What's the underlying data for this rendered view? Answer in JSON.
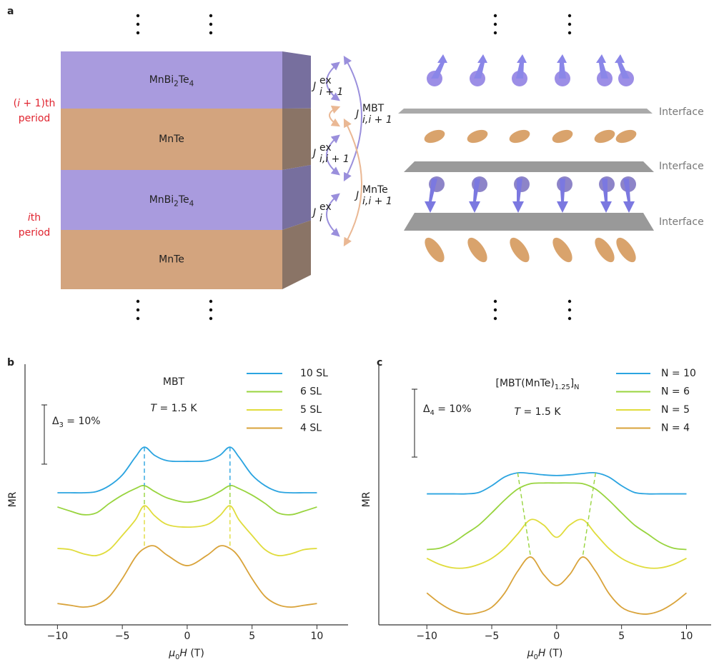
{
  "panel_a": {
    "label": "a",
    "periods": [
      {
        "lines": [
          [
            {
              "text": "("
            },
            {
              "italic": "i"
            },
            {
              "text": " + 1)th"
            }
          ],
          [
            {
              "text": "period"
            }
          ]
        ]
      },
      {
        "lines": [
          [
            {
              "italic": "i"
            },
            {
              "text": "th"
            }
          ],
          [
            {
              "text": "period"
            }
          ]
        ]
      }
    ],
    "layers": [
      [
        {
          "text": "MnBi"
        },
        {
          "sub": "2"
        },
        {
          "text": "Te"
        },
        {
          "sub": "4"
        }
      ],
      [
        {
          "text": "MnTe"
        }
      ],
      [
        {
          "text": "MnBi"
        },
        {
          "sub": "2"
        },
        {
          "text": "Te"
        },
        {
          "sub": "4"
        }
      ],
      [
        {
          "text": "MnTe"
        }
      ]
    ],
    "couplings": [
      {
        "symbol": "J",
        "sup": "ex",
        "sub": "i + 1"
      },
      {
        "symbol": "J",
        "sup": "ex",
        "sub": "i,i + 1"
      },
      {
        "symbol": "J",
        "sup": "ex",
        "sub": "i"
      },
      {
        "symbol": "J",
        "sup": "MBT",
        "sub": "i,i + 1"
      },
      {
        "symbol": "J",
        "sup": "MnTe",
        "sub": "i,i + 1"
      }
    ],
    "interfaces": [
      "Interface",
      "Interface",
      "Interface"
    ]
  },
  "chart_data": [
    {
      "type": "line",
      "panel": "b",
      "title": [
        {
          "text": "MBT"
        }
      ],
      "subtitle": [
        {
          "italic": "T"
        },
        {
          "text": " = 1.5 K"
        }
      ],
      "xlabel": [
        {
          "italic": "μ"
        },
        {
          "sub": "0"
        },
        {
          "italic": "H"
        },
        {
          "text": " (T)"
        }
      ],
      "ylabel": "MR",
      "scale_bar": {
        "label": [
          {
            "text": "Δ"
          },
          {
            "sub": "3"
          },
          {
            "text": " = 10%"
          }
        ],
        "length": 10
      },
      "legend": "upper right",
      "xlim": [
        -12.5,
        12.4
      ],
      "ylim": [
        0,
        44
      ],
      "xticks": [
        {
          "value": -10,
          "label": "−10"
        },
        {
          "value": -5,
          "label": "−5"
        },
        0,
        5,
        10
      ],
      "x": [
        -10,
        -9,
        -8,
        -7,
        -6,
        -5,
        -4,
        -3.3,
        -2.5,
        -1.5,
        0,
        1.5,
        2.5,
        3.3,
        4,
        5,
        6,
        7,
        8,
        9,
        10
      ],
      "series": [
        {
          "name": "4 SL",
          "color": "#d9a33a",
          "values": [
            3.6,
            3.3,
            3.0,
            3.4,
            4.8,
            7.8,
            11.4,
            12.9,
            13.3,
            11.7,
            10.0,
            11.7,
            13.3,
            12.9,
            11.4,
            7.8,
            4.8,
            3.4,
            3.0,
            3.3,
            3.6
          ]
        },
        {
          "name": "5 SL",
          "color": "#e0dc3c",
          "values": [
            12.9,
            12.7,
            12.0,
            11.7,
            12.7,
            15.1,
            17.7,
            20.1,
            18.4,
            16.9,
            16.5,
            16.9,
            18.4,
            20.1,
            17.7,
            15.1,
            12.7,
            11.7,
            12.0,
            12.7,
            12.9
          ]
        },
        {
          "name": "6 SL",
          "color": "#98d43e",
          "values": [
            19.9,
            19.2,
            18.6,
            18.9,
            20.5,
            21.9,
            23.0,
            23.5,
            22.5,
            21.4,
            20.7,
            21.4,
            22.5,
            23.5,
            23.0,
            21.9,
            20.5,
            18.9,
            18.6,
            19.2,
            19.9
          ]
        },
        {
          "name": "10 SL",
          "color": "#2ba4e0",
          "values": [
            22.3,
            22.3,
            22.3,
            22.5,
            23.5,
            25.3,
            28.3,
            30.0,
            28.6,
            27.7,
            27.6,
            27.7,
            28.6,
            30.0,
            28.3,
            25.3,
            23.5,
            22.5,
            22.3,
            22.3,
            22.3
          ]
        }
      ]
    },
    {
      "type": "line",
      "panel": "c",
      "title": [
        {
          "text": "[MBT(MnTe)"
        },
        {
          "sub": "1.25"
        },
        {
          "text": "]"
        },
        {
          "sub": "N"
        }
      ],
      "subtitle": [
        {
          "italic": "T"
        },
        {
          "text": " = 1.5 K"
        }
      ],
      "xlabel": [
        {
          "italic": "μ"
        },
        {
          "sub": "0"
        },
        {
          "italic": "H"
        },
        {
          "text": " (T)"
        }
      ],
      "ylabel": "MR",
      "scale_bar": {
        "label": [
          {
            "text": "Δ"
          },
          {
            "sub": "4"
          },
          {
            "text": " = 10%"
          }
        ],
        "length": 10
      },
      "legend": "upper right",
      "xlim": [
        -13.7,
        11.9
      ],
      "ylim": [
        0,
        38.4
      ],
      "xticks": [
        {
          "value": -10,
          "label": "−10"
        },
        {
          "value": -5,
          "label": "−5"
        },
        0,
        5,
        10
      ],
      "x": [
        -10,
        -9,
        -8,
        -7,
        -6,
        -5,
        -4,
        -3,
        -2,
        -1,
        0,
        1,
        2,
        3,
        4,
        5,
        6,
        7,
        8,
        9,
        10
      ],
      "series": [
        {
          "name": "N = 4",
          "color": "#d9a33a",
          "values": [
            4.7,
            3.2,
            2.1,
            1.6,
            1.8,
            2.6,
            4.7,
            7.9,
            10.0,
            7.4,
            5.8,
            7.4,
            10.0,
            7.9,
            4.7,
            2.6,
            1.8,
            1.6,
            2.1,
            3.2,
            4.7
          ]
        },
        {
          "name": "N = 5",
          "color": "#e0dc3c",
          "values": [
            9.8,
            8.9,
            8.4,
            8.4,
            8.9,
            9.8,
            11.3,
            13.4,
            15.5,
            14.7,
            12.9,
            14.7,
            15.5,
            13.4,
            11.3,
            9.8,
            8.9,
            8.4,
            8.4,
            8.9,
            9.8
          ]
        },
        {
          "name": "N = 6",
          "color": "#98d43e",
          "values": [
            11.1,
            11.3,
            12.1,
            13.4,
            14.7,
            16.5,
            18.4,
            20.0,
            20.8,
            20.9,
            20.9,
            20.9,
            20.8,
            20.0,
            18.4,
            16.5,
            14.7,
            13.4,
            12.1,
            11.3,
            11.1
          ]
        },
        {
          "name": "N = 10",
          "color": "#2ba4e0",
          "values": [
            19.3,
            19.3,
            19.3,
            19.3,
            19.5,
            20.5,
            21.8,
            22.4,
            22.3,
            22.1,
            22.0,
            22.1,
            22.3,
            22.4,
            21.8,
            20.5,
            19.5,
            19.3,
            19.3,
            19.3,
            19.3
          ]
        }
      ]
    }
  ]
}
